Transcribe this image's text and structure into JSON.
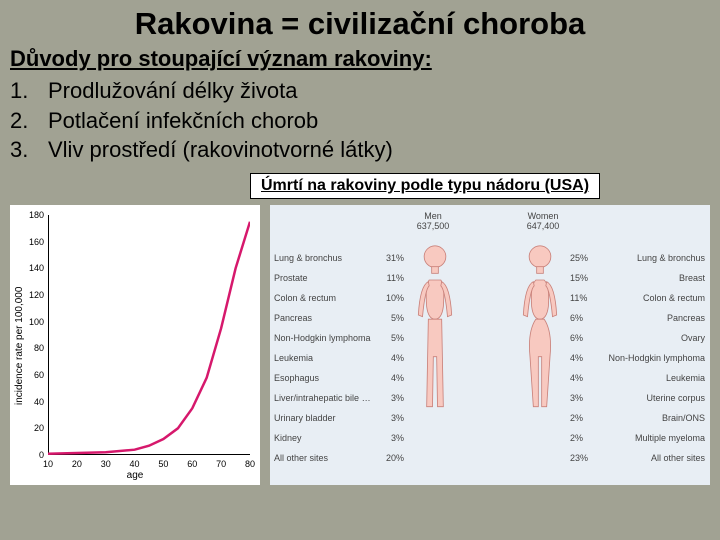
{
  "title": "Rakovina = civilizační choroba",
  "subtitle": "Důvody pro stoupající význam rakoviny:",
  "reasons": [
    {
      "n": "1.",
      "text": "Prodlužování délky života"
    },
    {
      "n": "2.",
      "text": "Potlačení infekčních chorob"
    },
    {
      "n": "3.",
      "text": "Vliv prostředí (rakovinotvorné látky)"
    }
  ],
  "boxLabel": "Úmrtí na rakoviny podle typu nádoru (USA)",
  "leftChart": {
    "ylabel": "incidence rate per 100,000",
    "xlabel": "age",
    "yticks": [
      0,
      20,
      40,
      60,
      80,
      100,
      120,
      140,
      160,
      180
    ],
    "xticks": [
      10,
      20,
      30,
      40,
      50,
      60,
      70,
      80
    ],
    "ylim": [
      0,
      180
    ],
    "xlim": [
      10,
      80
    ],
    "line_color": "#d6186c",
    "line_width": 2.5,
    "points": [
      [
        10,
        1
      ],
      [
        20,
        1.5
      ],
      [
        30,
        2
      ],
      [
        40,
        4
      ],
      [
        45,
        7
      ],
      [
        50,
        12
      ],
      [
        55,
        20
      ],
      [
        60,
        35
      ],
      [
        65,
        58
      ],
      [
        70,
        95
      ],
      [
        75,
        140
      ],
      [
        80,
        175
      ]
    ],
    "bg": "#ffffff"
  },
  "rightChart": {
    "bg": "#e8eef4",
    "body_color": "#f8c9c0",
    "body_outline": "#c9817a",
    "men": {
      "header": "Men",
      "total": "637,500",
      "rows": [
        {
          "label": "Lung & bronchus",
          "pct": "31%"
        },
        {
          "label": "Prostate",
          "pct": "11%"
        },
        {
          "label": "Colon & rectum",
          "pct": "10%"
        },
        {
          "label": "Pancreas",
          "pct": "5%"
        },
        {
          "label": "Non-Hodgkin lymphoma",
          "pct": "5%"
        },
        {
          "label": "Leukemia",
          "pct": "4%"
        },
        {
          "label": "Esophagus",
          "pct": "4%"
        },
        {
          "label": "Liver/intrahepatic bile duct",
          "pct": "3%"
        },
        {
          "label": "Urinary bladder",
          "pct": "3%"
        },
        {
          "label": "Kidney",
          "pct": "3%"
        },
        {
          "label": "All other sites",
          "pct": "20%"
        }
      ]
    },
    "women": {
      "header": "Women",
      "total": "647,400",
      "rows": [
        {
          "pct": "25%",
          "label": "Lung & bronchus"
        },
        {
          "pct": "15%",
          "label": "Breast"
        },
        {
          "pct": "11%",
          "label": "Colon & rectum"
        },
        {
          "pct": "6%",
          "label": "Pancreas"
        },
        {
          "pct": "6%",
          "label": "Ovary"
        },
        {
          "pct": "4%",
          "label": "Non-Hodgkin lymphoma"
        },
        {
          "pct": "4%",
          "label": "Leukemia"
        },
        {
          "pct": "3%",
          "label": "Uterine corpus"
        },
        {
          "pct": "2%",
          "label": "Brain/ONS"
        },
        {
          "pct": "2%",
          "label": "Multiple myeloma"
        },
        {
          "pct": "23%",
          "label": "All other sites"
        }
      ]
    }
  }
}
